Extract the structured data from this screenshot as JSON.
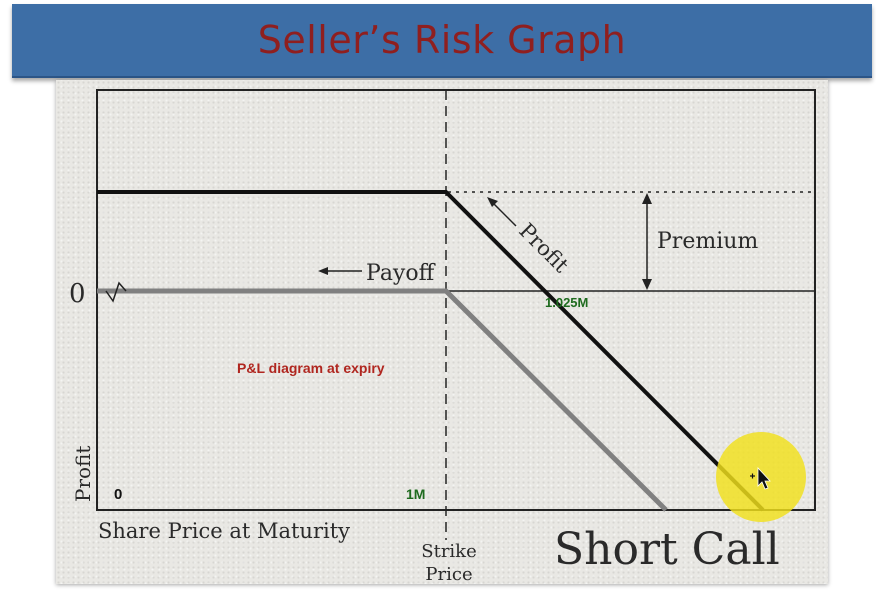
{
  "slide": {
    "title": "Seller’s Risk Graph"
  },
  "diagram": {
    "zero_label": "0",
    "y_axis_label": "Profit",
    "x_axis_label": "Share Price at Maturity",
    "strike_label_line1": "Strike",
    "strike_label_line2": "Price",
    "payoff_label": "Payoff",
    "profit_label": "Profit",
    "premium_label": "Premium",
    "caption": "Short Call",
    "annotation_pl": "P&L diagram at expiry",
    "annotation_origin": "0",
    "annotation_strike": "1M",
    "annotation_breakeven": "1.025M",
    "colors": {
      "profit_line": "#111111",
      "payoff_line": "#808080",
      "annotation_red": "#b0261f",
      "annotation_green": "#1e6b1e",
      "cursor_highlight": "#f2e11b"
    }
  }
}
